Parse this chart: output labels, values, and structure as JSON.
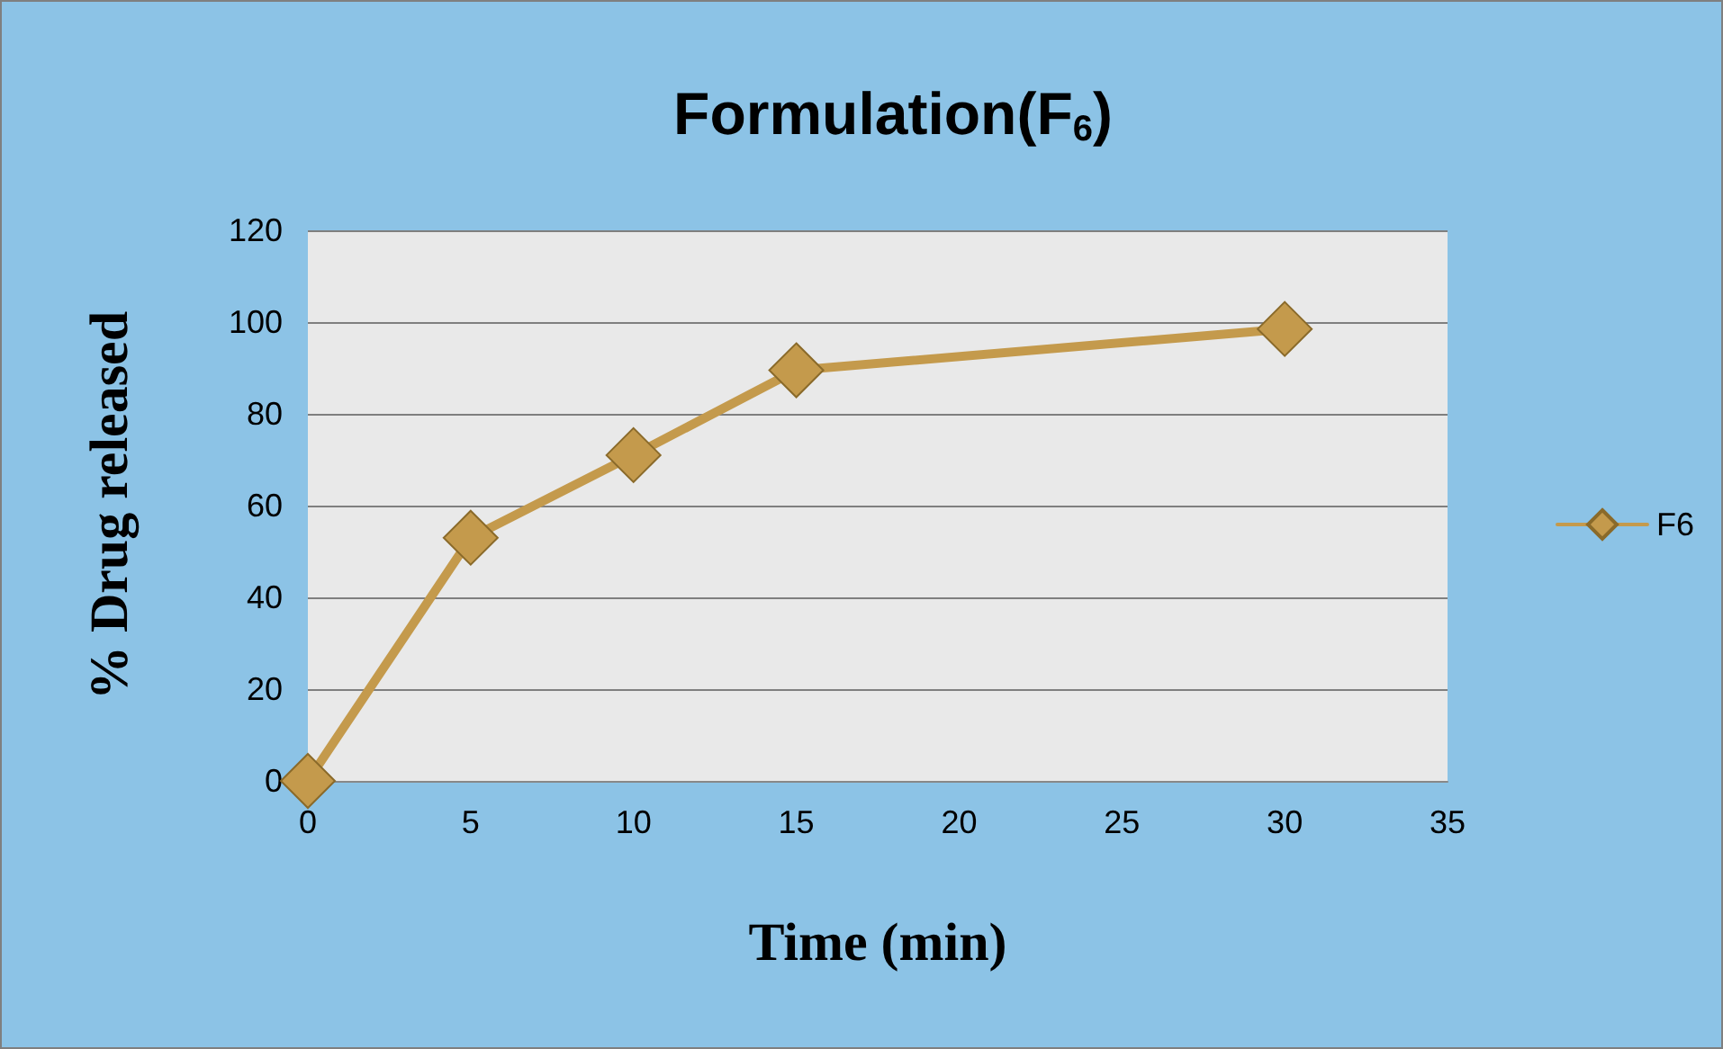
{
  "chart_data": {
    "type": "line",
    "title": "Formulation(F$_{6}$)",
    "xlabel": "Time (min)",
    "ylabel": "% Drug released",
    "x": [
      0,
      5,
      10,
      15,
      30
    ],
    "series": [
      {
        "name": "F6",
        "color": "#c49a4c",
        "values": [
          0,
          53,
          71,
          89.5,
          98.5
        ]
      }
    ],
    "xlim": [
      0,
      35
    ],
    "xticks": [
      0,
      5,
      10,
      15,
      20,
      25,
      30,
      35
    ],
    "ylim": [
      0,
      120
    ],
    "yticks": [
      0,
      20,
      40,
      60,
      80,
      100,
      120
    ],
    "grid": "y",
    "legend": "right",
    "marker": "diamond",
    "line_style": "solid"
  }
}
